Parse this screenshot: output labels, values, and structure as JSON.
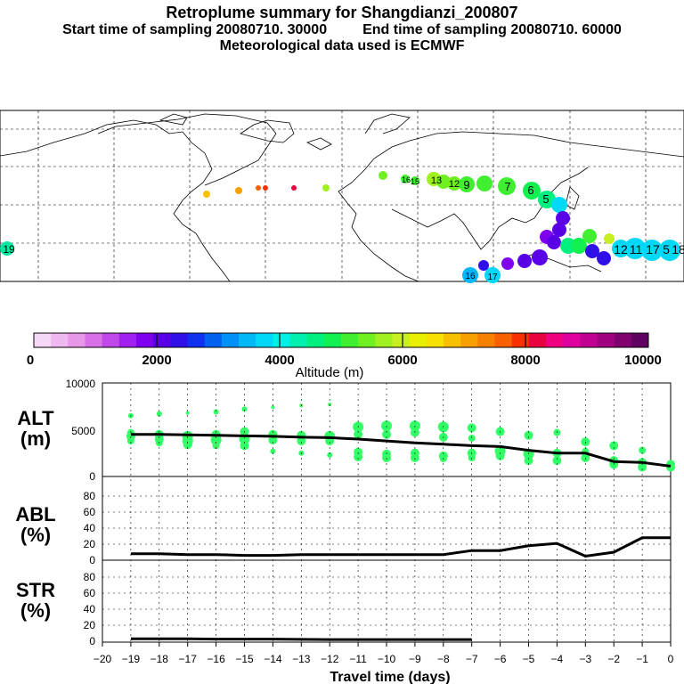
{
  "header": {
    "title": "Retroplume summary for Shangdianzi_200807",
    "start_label": "Start time of sampling 20080710. 30000",
    "end_label": "End time of sampling 20080710. 60000",
    "met_label": "Meteorological data used is ECMWF"
  },
  "colors": {
    "trajectory_green": "#33ff66",
    "line": "#000000",
    "colorbar": [
      "#f8d8f8",
      "#f0b8f0",
      "#e898e8",
      "#d870e8",
      "#c048e8",
      "#a020f0",
      "#8000f0",
      "#5a00e6",
      "#3010e8",
      "#1030f0",
      "#0060f0",
      "#0090f8",
      "#00b8f8",
      "#00d8f8",
      "#00f0e8",
      "#00f0b0",
      "#00f080",
      "#10f050",
      "#40f030",
      "#70f020",
      "#a0f020",
      "#c8f020",
      "#e8f000",
      "#f8e000",
      "#f8c000",
      "#f8a000",
      "#f88000",
      "#f86000",
      "#f83000",
      "#e80040",
      "#f00080",
      "#e000a0",
      "#c00090",
      "#a00080",
      "#800070",
      "#600060"
    ]
  },
  "colorbar": {
    "ticks": [
      "0",
      "2000",
      "4000",
      "6000",
      "8000",
      "10000"
    ],
    "label": "Altitude (m)"
  },
  "map": {
    "labels": [
      {
        "text": "19"
      },
      {
        "text": "7"
      },
      {
        "text": "6"
      },
      {
        "text": "5"
      },
      {
        "text": "9"
      },
      {
        "text": "13"
      },
      {
        "text": "12"
      },
      {
        "text": "16"
      },
      {
        "text": "15"
      },
      {
        "text": "12"
      },
      {
        "text": "11"
      },
      {
        "text": "17"
      },
      {
        "text": "5"
      },
      {
        "text": "18"
      },
      {
        "text": "16"
      },
      {
        "text": "17"
      }
    ]
  },
  "panels": {
    "alt": {
      "label_top": "ALT",
      "label_bottom": "(m)",
      "ticks": [
        "0",
        "5000",
        "10000"
      ]
    },
    "abl": {
      "label_top": "ABL",
      "label_bottom": "(%)",
      "ticks": [
        "0",
        "20",
        "40",
        "60",
        "80"
      ]
    },
    "str": {
      "label_top": "STR",
      "label_bottom": "(%)",
      "ticks": [
        "0",
        "20",
        "40",
        "60",
        "80"
      ]
    }
  },
  "xaxis": {
    "ticks": [
      "−20",
      "−19",
      "−18",
      "−17",
      "−16",
      "−15",
      "−14",
      "−13",
      "−12",
      "−11",
      "−10",
      "−9",
      "−8",
      "−7",
      "−6",
      "−5",
      "−4",
      "−3",
      "−2",
      "−1",
      "0"
    ],
    "label": "Travel time (days)"
  },
  "chart_data": [
    {
      "type": "scatter",
      "title": "ALT",
      "xlabel": "Travel time (days)",
      "ylabel": "Altitude (m)",
      "xlim": [
        -20,
        0
      ],
      "ylim": [
        0,
        10000
      ],
      "line": {
        "x": [
          -19,
          -18,
          -17,
          -16,
          -15,
          -14,
          -13,
          -12,
          -11,
          -10,
          -9,
          -8,
          -7,
          -6,
          -5,
          -4,
          -3,
          -2,
          -1,
          0
        ],
        "y": [
          4500,
          4500,
          4450,
          4400,
          4350,
          4300,
          4200,
          4150,
          4000,
          3800,
          3600,
          3450,
          3300,
          3200,
          2800,
          2500,
          2500,
          1600,
          1500,
          1100
        ]
      },
      "points": [
        [
          -19,
          6500,
          3
        ],
        [
          -19,
          4700,
          4
        ],
        [
          -19,
          4300,
          5
        ],
        [
          -19,
          3800,
          4
        ],
        [
          -18,
          6700,
          3
        ],
        [
          -18,
          4500,
          5
        ],
        [
          -18,
          4000,
          5
        ],
        [
          -18,
          3600,
          4
        ],
        [
          -17,
          6800,
          2
        ],
        [
          -17,
          4300,
          6
        ],
        [
          -17,
          3800,
          6
        ],
        [
          -17,
          3400,
          5
        ],
        [
          -16,
          6900,
          3
        ],
        [
          -16,
          4500,
          5
        ],
        [
          -16,
          3900,
          6
        ],
        [
          -16,
          3300,
          4
        ],
        [
          -15,
          7200,
          3
        ],
        [
          -15,
          4800,
          5
        ],
        [
          -15,
          4000,
          6
        ],
        [
          -15,
          3300,
          5
        ],
        [
          -14,
          7400,
          2
        ],
        [
          -14,
          4500,
          5
        ],
        [
          -14,
          3900,
          5
        ],
        [
          -14,
          2700,
          3
        ],
        [
          -13,
          7600,
          2
        ],
        [
          -13,
          4400,
          5
        ],
        [
          -13,
          3800,
          5
        ],
        [
          -13,
          2500,
          3
        ],
        [
          -12,
          7700,
          2
        ],
        [
          -12,
          4300,
          6
        ],
        [
          -12,
          3800,
          5
        ],
        [
          -12,
          2300,
          3
        ],
        [
          -11,
          5300,
          6
        ],
        [
          -11,
          4500,
          5
        ],
        [
          -11,
          2600,
          5
        ],
        [
          -11,
          2100,
          5
        ],
        [
          -10,
          5400,
          6
        ],
        [
          -10,
          4500,
          5
        ],
        [
          -10,
          2400,
          5
        ],
        [
          -10,
          2000,
          5
        ],
        [
          -9,
          5400,
          6
        ],
        [
          -9,
          4700,
          5
        ],
        [
          -9,
          2500,
          5
        ],
        [
          -9,
          2000,
          5
        ],
        [
          -8,
          5300,
          6
        ],
        [
          -8,
          4200,
          5
        ],
        [
          -8,
          2200,
          5
        ],
        [
          -8,
          1900,
          4
        ],
        [
          -7,
          5200,
          5
        ],
        [
          -7,
          4100,
          4
        ],
        [
          -7,
          2500,
          5
        ],
        [
          -7,
          2000,
          4
        ],
        [
          -6,
          4800,
          5
        ],
        [
          -6,
          2700,
          6
        ],
        [
          -6,
          2200,
          5
        ],
        [
          -5,
          4400,
          5
        ],
        [
          -5,
          2400,
          6
        ],
        [
          -5,
          1700,
          5
        ],
        [
          -4,
          4700,
          4
        ],
        [
          -4,
          2500,
          5
        ],
        [
          -4,
          1700,
          5
        ],
        [
          -3,
          3700,
          5
        ],
        [
          -3,
          2700,
          4
        ],
        [
          -3,
          2000,
          5
        ],
        [
          -2,
          3300,
          5
        ],
        [
          -2,
          1700,
          5
        ],
        [
          -2,
          1300,
          5
        ],
        [
          -1,
          2800,
          4
        ],
        [
          -1,
          1500,
          5
        ],
        [
          -1,
          1000,
          5
        ],
        [
          0,
          1300,
          5
        ],
        [
          0,
          1000,
          5
        ]
      ]
    },
    {
      "type": "line",
      "title": "ABL",
      "xlabel": "Travel time (days)",
      "ylabel": "ABL (%)",
      "xlim": [
        -20,
        0
      ],
      "ylim": [
        0,
        100
      ],
      "x": [
        -19,
        -18,
        -17,
        -16,
        -15,
        -14,
        -13,
        -12,
        -11,
        -10,
        -9,
        -8,
        -7,
        -6,
        -5,
        -4,
        -3,
        -2,
        -1,
        0
      ],
      "values": [
        8,
        8,
        7,
        7,
        6,
        6,
        7,
        7,
        7,
        7,
        7,
        7,
        12,
        12,
        18,
        21,
        5,
        10,
        28,
        28
      ]
    },
    {
      "type": "line",
      "title": "STR",
      "xlabel": "Travel time (days)",
      "ylabel": "STR (%)",
      "xlim": [
        -20,
        0
      ],
      "ylim": [
        0,
        100
      ],
      "x": [
        -19,
        -18,
        -17,
        -16,
        -15,
        -14,
        -13,
        -12,
        -11,
        -10,
        -9,
        -8,
        -7
      ],
      "values": [
        2,
        2,
        2,
        1.5,
        1.5,
        1.5,
        1.2,
        1,
        1,
        1,
        1,
        1,
        1
      ]
    }
  ]
}
